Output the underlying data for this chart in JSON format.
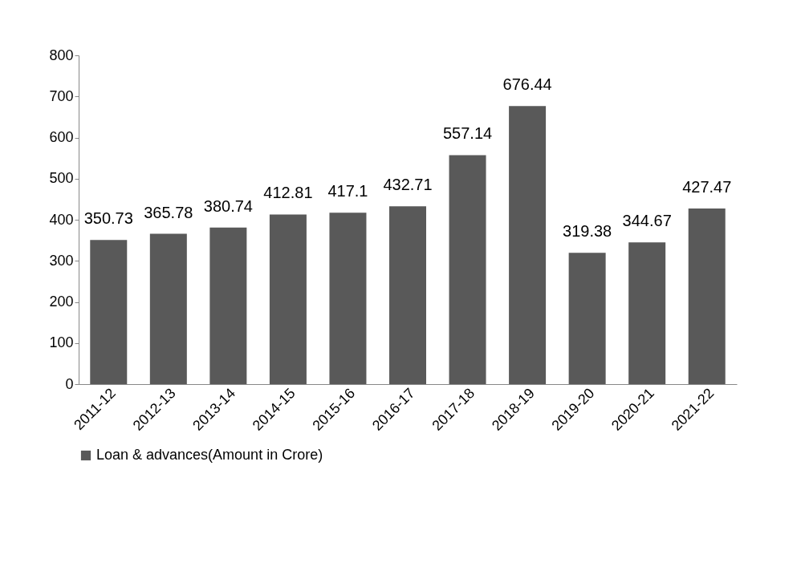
{
  "chart_data": {
    "type": "bar",
    "categories": [
      "2011-12",
      "2012-13",
      "2013-14",
      "2014-15",
      "2015-16",
      "2016-17",
      "2017-18",
      "2018-19",
      "2019-20",
      "2020-21",
      "2021-22"
    ],
    "series": [
      {
        "name": "Loan & advances(Amount in Crore)",
        "color": "#595959",
        "values": [
          350.73,
          365.78,
          380.74,
          412.81,
          417.1,
          432.71,
          557.14,
          676.44,
          319.38,
          344.67,
          427.47
        ]
      }
    ],
    "ylim": [
      0,
      800
    ],
    "yticks": [
      0,
      100,
      200,
      300,
      400,
      500,
      600,
      700,
      800
    ],
    "grid": false,
    "legend": "bottom",
    "data_labels": true
  }
}
